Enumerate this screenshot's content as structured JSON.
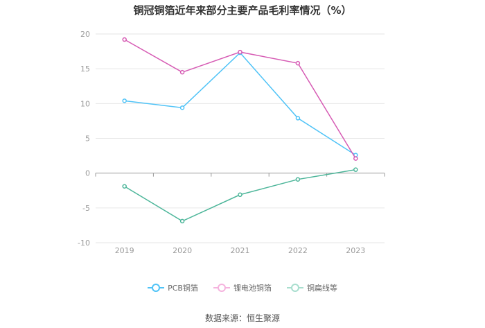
{
  "title": "铜冠铜箔近年来部分主要产品毛利率情况（%）",
  "source": "数据来源：恒生聚源",
  "chart_data": {
    "type": "line",
    "categories": [
      "2019",
      "2020",
      "2021",
      "2022",
      "2023"
    ],
    "ylim": [
      -10,
      20
    ],
    "yticks": [
      20,
      15,
      10,
      5,
      0,
      -5,
      -10
    ],
    "grid": true,
    "legend_position": "bottom-center",
    "series": [
      {
        "name": "PCB铜箔",
        "color": "#4FC3F7",
        "values": [
          10.4,
          9.4,
          17.3,
          7.9,
          2.6
        ]
      },
      {
        "name": "锂电池铜箔",
        "color": "#D65BB4",
        "values": [
          19.2,
          14.5,
          17.4,
          15.8,
          2.1
        ]
      },
      {
        "name": "铜扁线等",
        "color": "#4DB69A",
        "values": [
          -1.9,
          -6.9,
          -3.1,
          -0.9,
          0.5
        ]
      }
    ]
  }
}
